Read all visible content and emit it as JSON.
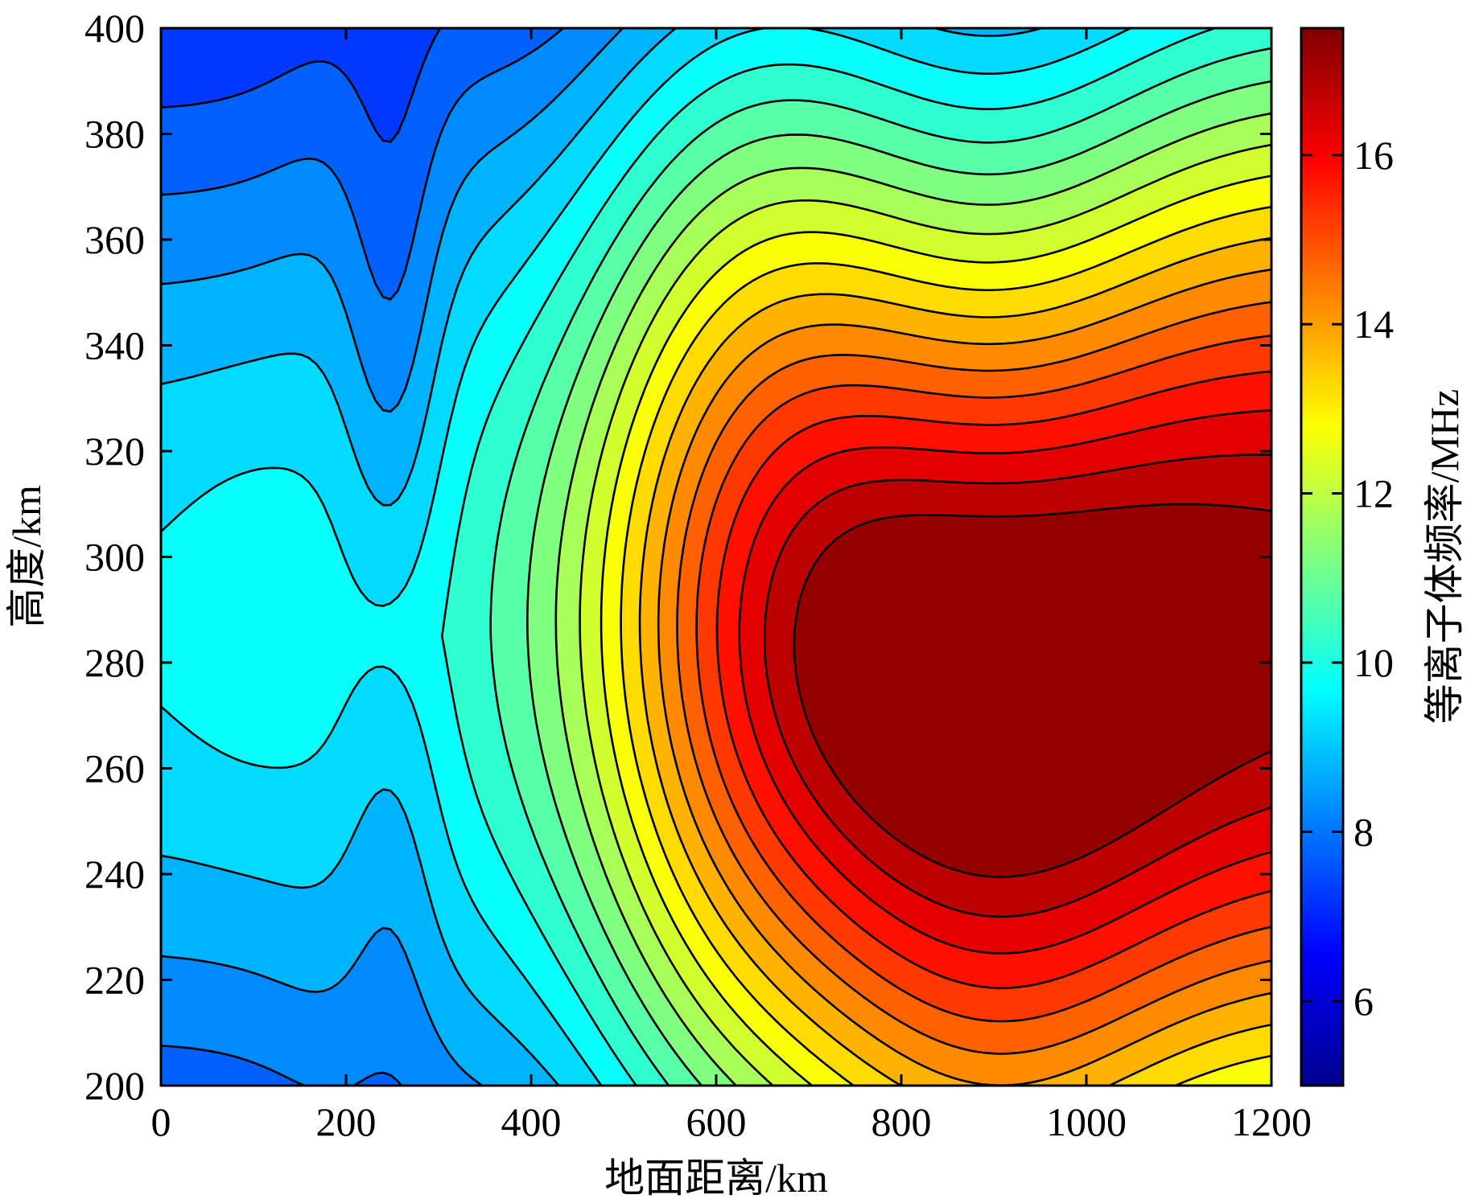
{
  "chart_data": {
    "type": "contour",
    "title": "",
    "xlabel": "地面距离/km",
    "ylabel": "高度/km",
    "colorbar_label": "等离子体频率/MHz",
    "xlim": [
      0,
      1200
    ],
    "ylim": [
      200,
      400
    ],
    "xticks": [
      0,
      200,
      400,
      600,
      800,
      1000,
      1200
    ],
    "xtick_labels": [
      "0",
      "200",
      "400",
      "600",
      "800",
      "1000",
      "1200"
    ],
    "yticks": [
      200,
      220,
      240,
      260,
      280,
      300,
      320,
      340,
      360,
      380,
      400
    ],
    "ytick_labels": [
      "200",
      "220",
      "240",
      "260",
      "280",
      "300",
      "320",
      "340",
      "360",
      "380",
      "400"
    ],
    "clim": [
      5,
      17.5
    ],
    "cticks": [
      6,
      8,
      10,
      12,
      14,
      16
    ],
    "ctick_labels": [
      "6",
      "8",
      "10",
      "12",
      "14",
      "16"
    ],
    "colormap": "jet",
    "contour_levels": [
      5.5,
      6.0,
      6.5,
      7.0,
      7.5,
      8.0,
      8.5,
      9.0,
      9.5,
      10.0,
      10.5,
      11.0,
      11.5,
      12.0,
      12.5,
      13.0,
      13.5,
      14.0,
      14.5,
      15.0,
      15.5,
      16.0,
      16.5,
      17.0
    ],
    "peak_frequency_mhz": 17.3,
    "peak_location": {
      "x": 870,
      "y": 287
    },
    "grid": false
  }
}
